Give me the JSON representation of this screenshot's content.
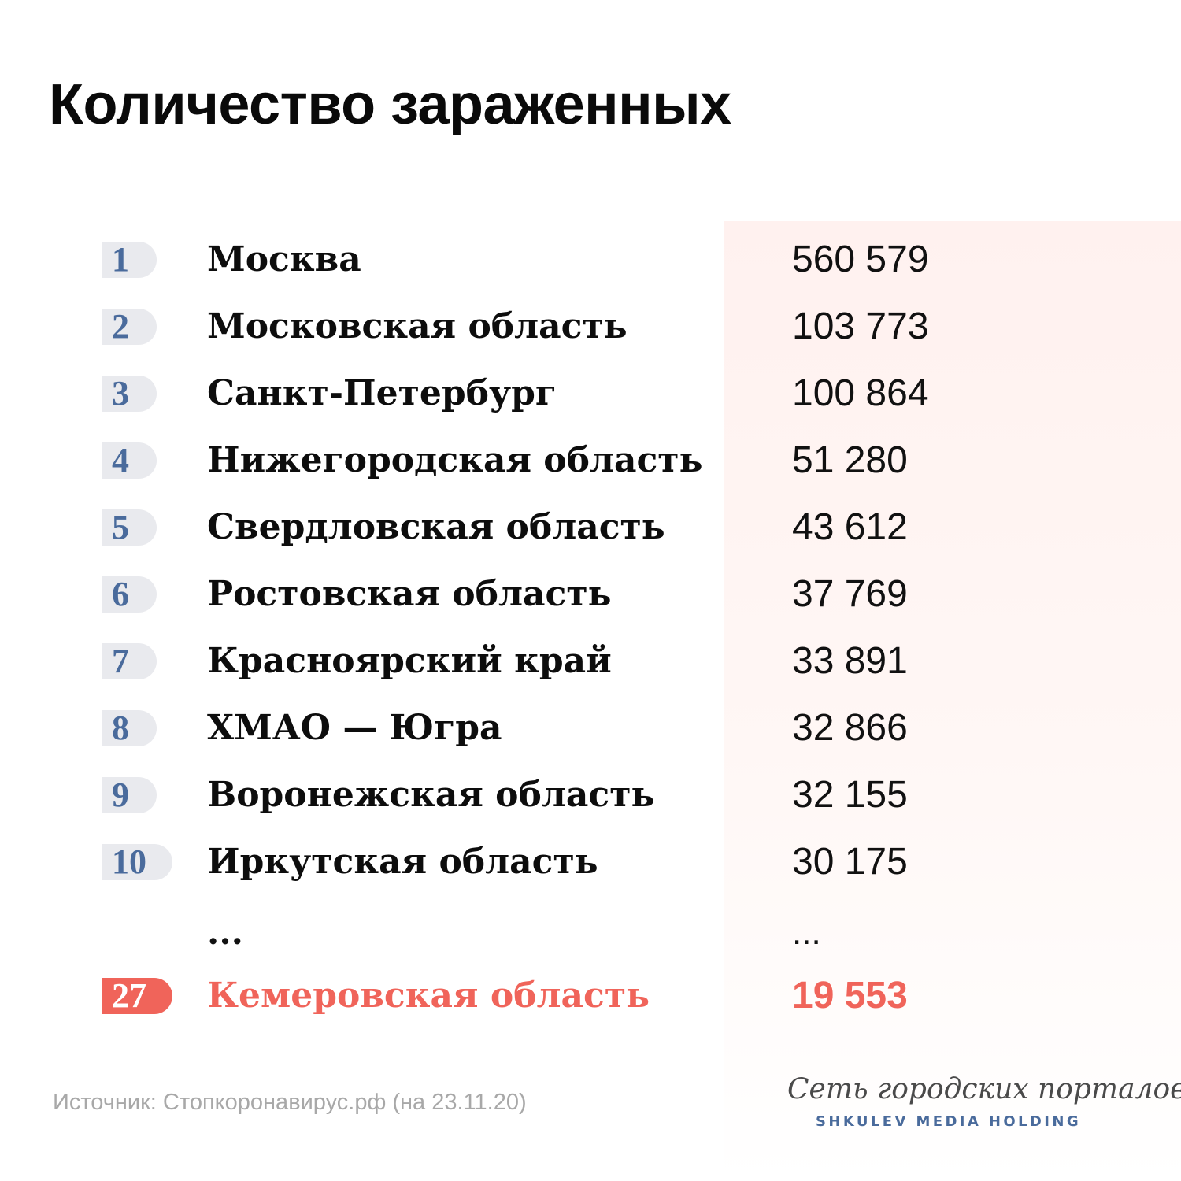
{
  "colors": {
    "rank_blue": "#4a6b9c",
    "rank_pill": "#e9eaee",
    "accent_red": "#f0645a",
    "panel_tint": "#fff1ef",
    "source_gray": "#a8a8a8"
  },
  "chart_data": {
    "type": "table",
    "title": "Количество зараженных",
    "columns": [
      "rank",
      "region",
      "value"
    ],
    "rows": [
      {
        "rank": "1",
        "region": "Москва",
        "value": "560 579"
      },
      {
        "rank": "2",
        "region": "Московская область",
        "value": "103 773"
      },
      {
        "rank": "3",
        "region": "Санкт-Петербург",
        "value": "100 864"
      },
      {
        "rank": "4",
        "region": "Нижегородская область",
        "value": "51 280"
      },
      {
        "rank": "5",
        "region": "Свердловская область",
        "value": "43 612"
      },
      {
        "rank": "6",
        "region": "Ростовская область",
        "value": "37 769"
      },
      {
        "rank": "7",
        "region": "Красноярский край",
        "value": "33 891"
      },
      {
        "rank": "8",
        "region": "ХМАО — Югра",
        "value": "32 866"
      },
      {
        "rank": "9",
        "region": "Воронежская область",
        "value": "32 155"
      },
      {
        "rank": "10",
        "region": "Иркутская область",
        "value": "30 175"
      }
    ],
    "ellipsis": {
      "region": "...",
      "value": "..."
    },
    "highlight": {
      "rank": "27",
      "region": "Кемеровская область",
      "value": "19 553"
    },
    "source": "Источник: Стопкоронавирус.рф (на 23.11.20)"
  },
  "brand": {
    "script": "Сеть городских порталов",
    "caps": "SHKULEV MEDIA HOLDING"
  }
}
